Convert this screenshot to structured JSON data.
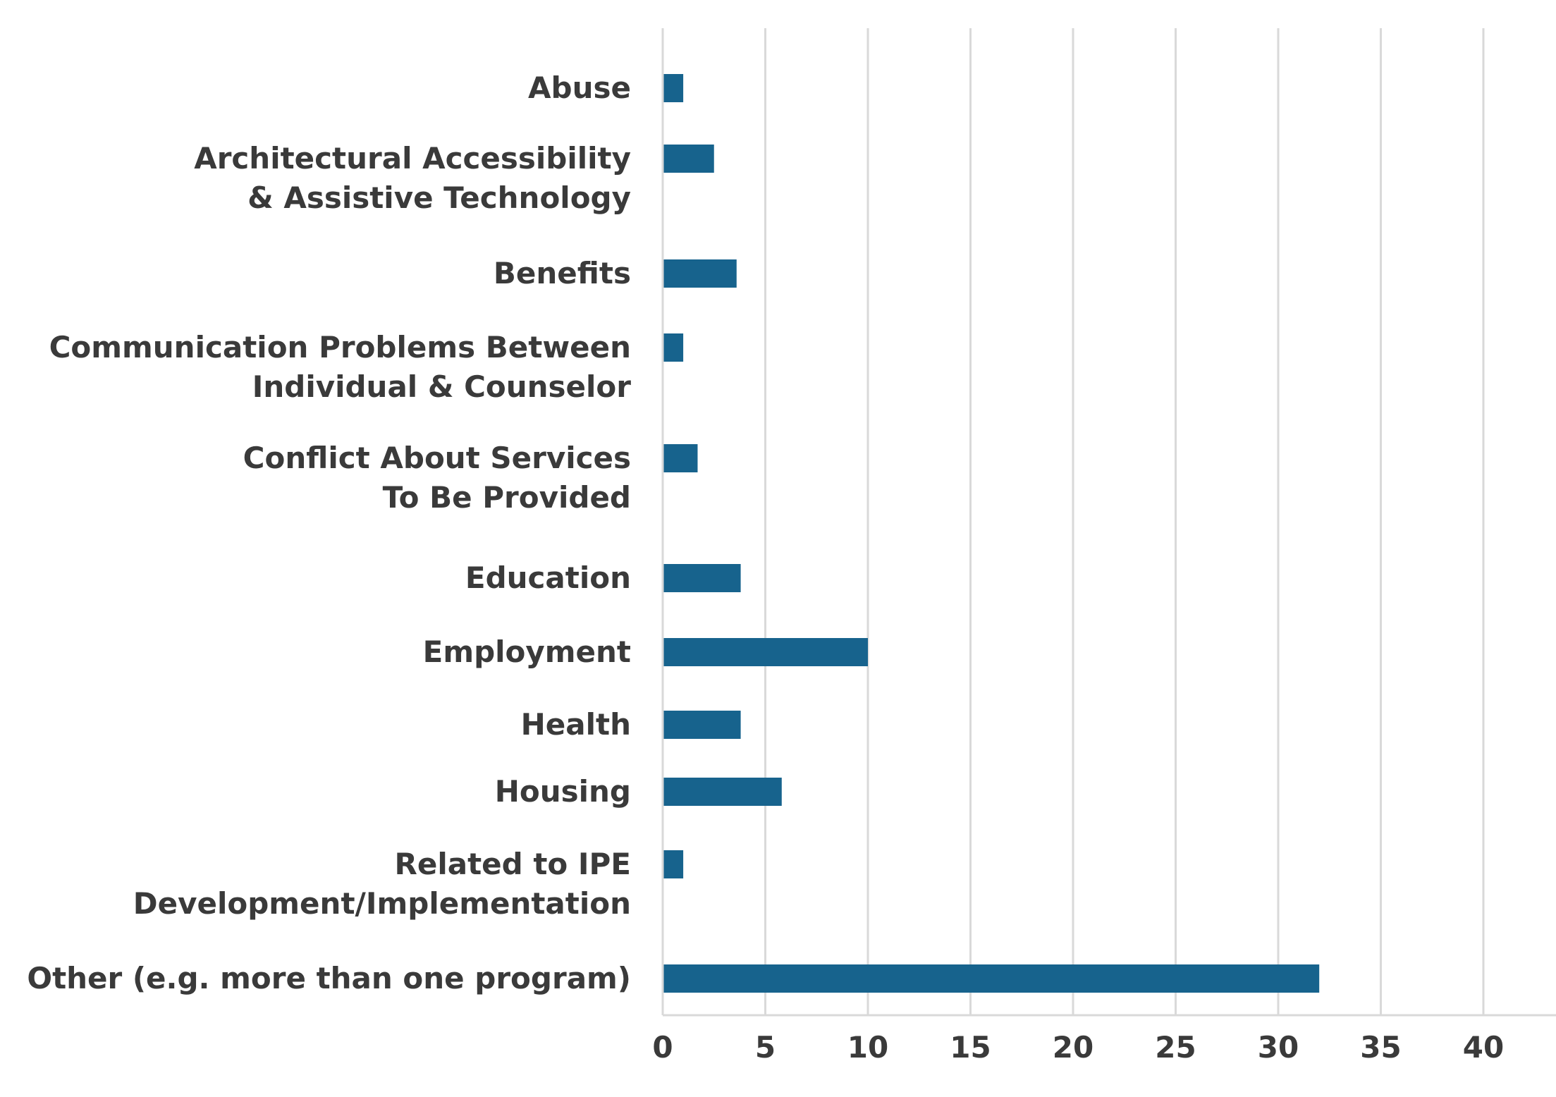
{
  "chart_data": {
    "type": "bar",
    "orientation": "horizontal",
    "categories": [
      [
        "Abuse"
      ],
      [
        "Architectural Accessibility",
        "& Assistive Technology"
      ],
      [
        "Benefits"
      ],
      [
        "Communication Problems Between",
        "Individual & Counselor"
      ],
      [
        "Conflict About Services",
        "To Be Provided"
      ],
      [
        "Education"
      ],
      [
        "Employment"
      ],
      [
        "Health"
      ],
      [
        "Housing"
      ],
      [
        "Related to IPE",
        "Development/Implementation"
      ],
      [
        "Other (e.g. more than one program)"
      ]
    ],
    "values": [
      1,
      2.5,
      3.6,
      1,
      1.7,
      3.8,
      10,
      3.8,
      5.8,
      1,
      32
    ],
    "xlim": [
      0,
      44
    ],
    "xticks": [
      "0",
      "5",
      "10",
      "15",
      "20",
      "25",
      "30",
      "35",
      "40"
    ],
    "xtick_values": [
      0,
      5,
      10,
      15,
      20,
      25,
      30,
      35,
      40
    ],
    "title": "",
    "xlabel": "",
    "ylabel": "",
    "grid": "vertical",
    "legend": "none",
    "bar_color": "#17638d",
    "grid_color": "#d9d9d9",
    "text_color": "#3a3a3a"
  }
}
